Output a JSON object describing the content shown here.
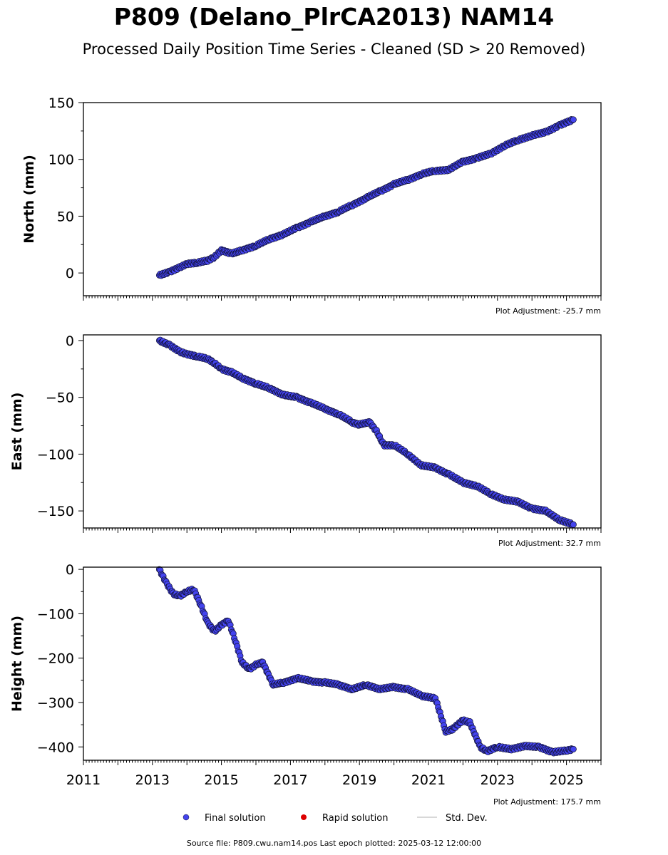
{
  "figure": {
    "title": "P809 (Delano_PlrCA2013) NAM14",
    "subtitle": "Processed Daily Position Time Series - Cleaned (SD > 20 Removed)",
    "footer": "Source file: P809.cwu.nam14.pos  Last epoch plotted: 2025-03-12 12:00:00"
  },
  "colors": {
    "final_solution": "#4444ee",
    "marker_edge": "#101030",
    "rapid_solution": "#dd0000",
    "std_dev": "#cccccc"
  },
  "legend": {
    "placement": "bottom-center",
    "final_label": "Final solution",
    "rapid_label": "Rapid solution",
    "std_label": "Std. Dev."
  },
  "chart_data": [
    {
      "type": "scatter",
      "ylabel": "North (mm)",
      "adjustment_note": "Plot Adjustment: -25.7 mm",
      "xlim": [
        2011,
        2026
      ],
      "ylim": [
        -20,
        150
      ],
      "yticks": [
        0,
        50,
        100,
        150
      ],
      "series": [
        {
          "name": "Final solution",
          "x": [
            2013.2,
            2013.5,
            2013.8,
            2014.0,
            2014.3,
            2014.6,
            2014.8,
            2015.0,
            2015.3,
            2015.6,
            2016.0,
            2016.4,
            2016.8,
            2017.2,
            2017.6,
            2018.0,
            2018.4,
            2018.8,
            2019.2,
            2019.6,
            2020.0,
            2020.4,
            2020.8,
            2021.2,
            2021.6,
            2022.0,
            2022.4,
            2022.8,
            2023.2,
            2023.6,
            2024.0,
            2024.4,
            2024.8,
            2025.2
          ],
          "y": [
            -2,
            1,
            5,
            8,
            9,
            11,
            14,
            20,
            17,
            20,
            24,
            30,
            34,
            40,
            45,
            50,
            54,
            60,
            66,
            72,
            78,
            82,
            87,
            90,
            91,
            98,
            101,
            105,
            112,
            117,
            121,
            124,
            130,
            135
          ]
        }
      ]
    },
    {
      "type": "scatter",
      "ylabel": "East (mm)",
      "adjustment_note": "Plot Adjustment: 32.7 mm",
      "xlim": [
        2011,
        2026
      ],
      "ylim": [
        -165,
        5
      ],
      "yticks": [
        0,
        -50,
        -100,
        -150
      ],
      "series": [
        {
          "name": "Final solution",
          "x": [
            2013.2,
            2013.5,
            2013.8,
            2014.0,
            2014.3,
            2014.6,
            2014.8,
            2015.0,
            2015.3,
            2015.6,
            2016.0,
            2016.4,
            2016.8,
            2017.2,
            2017.6,
            2018.0,
            2018.4,
            2018.8,
            2019.0,
            2019.3,
            2019.5,
            2019.7,
            2020.0,
            2020.4,
            2020.8,
            2021.2,
            2021.6,
            2022.0,
            2022.4,
            2022.8,
            2023.2,
            2023.6,
            2024.0,
            2024.4,
            2024.8,
            2025.2
          ],
          "y": [
            0,
            -4,
            -10,
            -12,
            -14,
            -16,
            -20,
            -25,
            -28,
            -33,
            -38,
            -42,
            -48,
            -50,
            -55,
            -60,
            -65,
            -72,
            -74,
            -72,
            -80,
            -92,
            -92,
            -100,
            -110,
            -112,
            -118,
            -125,
            -128,
            -135,
            -140,
            -142,
            -148,
            -150,
            -158,
            -162
          ]
        }
      ]
    },
    {
      "type": "scatter",
      "ylabel": "Height (mm)",
      "adjustment_note": "Plot Adjustment: 175.7 mm",
      "xlim": [
        2011,
        2026
      ],
      "ylim": [
        -430,
        5
      ],
      "yticks": [
        0,
        -100,
        -200,
        -300,
        -400
      ],
      "xticks": [
        2011,
        2013,
        2015,
        2017,
        2019,
        2021,
        2023,
        2025
      ],
      "series": [
        {
          "name": "Final solution",
          "x": [
            2013.2,
            2013.4,
            2013.6,
            2013.8,
            2014.0,
            2014.2,
            2014.4,
            2014.6,
            2014.8,
            2015.0,
            2015.2,
            2015.4,
            2015.6,
            2015.8,
            2016.0,
            2016.2,
            2016.5,
            2016.8,
            2017.2,
            2017.6,
            2018.0,
            2018.4,
            2018.8,
            2019.2,
            2019.6,
            2020.0,
            2020.4,
            2020.8,
            2021.2,
            2021.5,
            2021.7,
            2022.0,
            2022.2,
            2022.5,
            2022.7,
            2023.0,
            2023.4,
            2023.8,
            2024.2,
            2024.6,
            2025.0,
            2025.2
          ],
          "y": [
            0,
            -30,
            -55,
            -60,
            -50,
            -45,
            -80,
            -120,
            -140,
            -125,
            -115,
            -160,
            -210,
            -225,
            -215,
            -210,
            -260,
            -255,
            -245,
            -252,
            -255,
            -260,
            -270,
            -260,
            -270,
            -265,
            -270,
            -285,
            -290,
            -365,
            -360,
            -340,
            -345,
            -400,
            -410,
            -400,
            -405,
            -398,
            -400,
            -412,
            -408,
            -405
          ]
        }
      ]
    }
  ]
}
